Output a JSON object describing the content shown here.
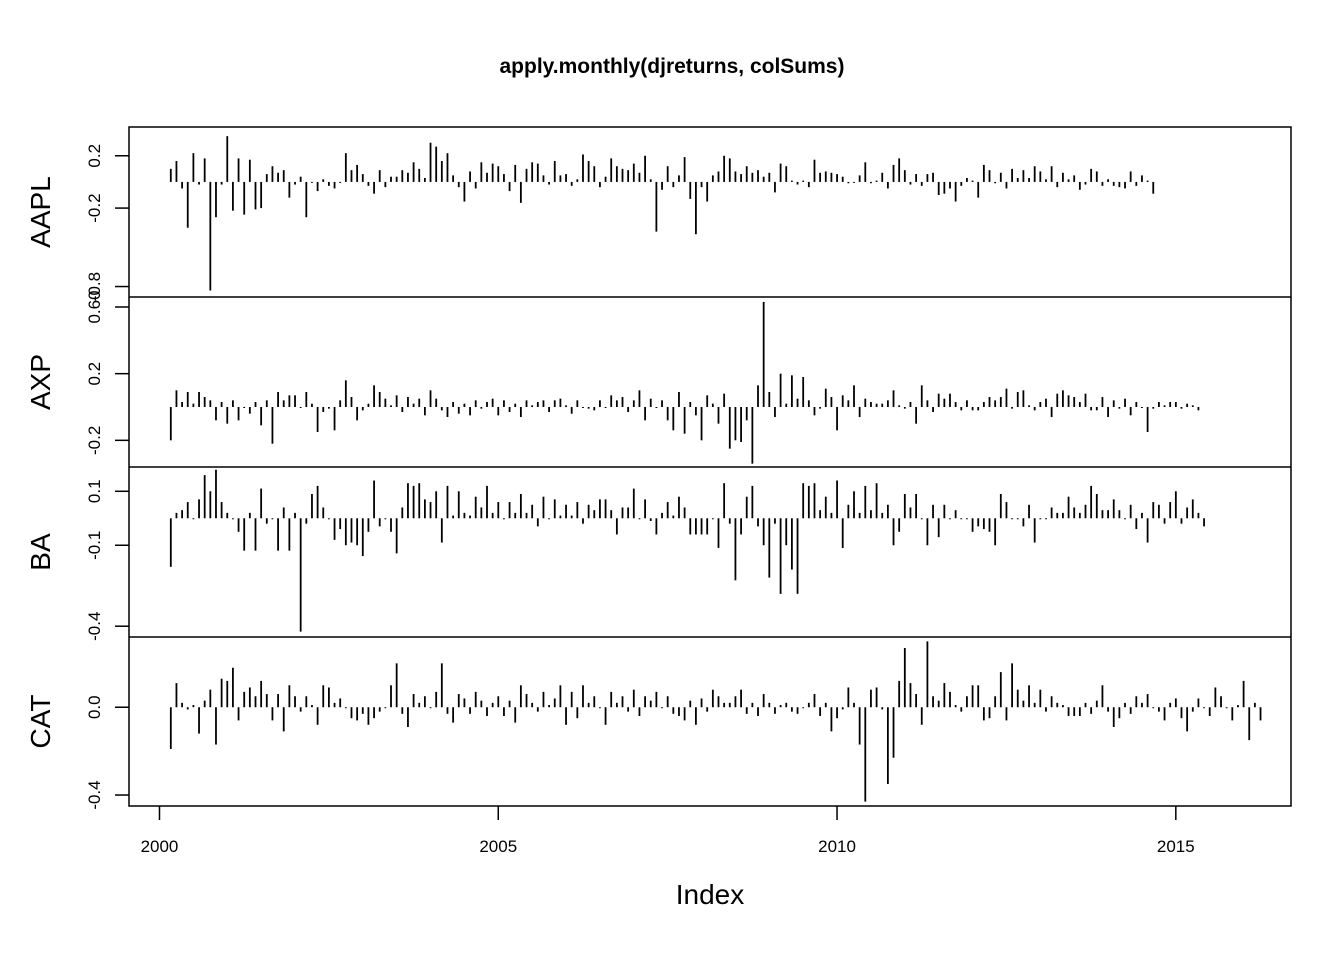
{
  "chart_data": {
    "type": "line",
    "style": "histogram-spikes",
    "title": "apply.monthly(djreturns, colSums)",
    "xlabel": "Index",
    "x_start": 2000.167,
    "x_step_months": 1,
    "xlim": [
      1999.55,
      2016.7
    ],
    "x_ticks": [
      2000,
      2005,
      2010,
      2015
    ],
    "x_tick_labels": [
      "2000",
      "2005",
      "2010",
      "2015"
    ],
    "series": [
      {
        "name": "AAPL",
        "ylim": [
          -0.88,
          0.42
        ],
        "y_ticks": [
          0.2,
          -0.2,
          -0.8
        ],
        "y_tick_labels": [
          "0.2",
          "-0.2",
          "-0.8"
        ],
        "values": [
          0.1,
          0.16,
          -0.05,
          -0.35,
          0.22,
          -0.02,
          0.18,
          -0.83,
          -0.27,
          -0.02,
          0.35,
          -0.22,
          0.18,
          -0.25,
          0.17,
          -0.21,
          -0.2,
          0.06,
          0.12,
          0.07,
          0.09,
          -0.12,
          -0.02,
          0.04,
          -0.27,
          0.0,
          -0.07,
          0.02,
          -0.03,
          -0.05,
          0.0,
          0.22,
          0.09,
          0.13,
          0.06,
          -0.03,
          -0.09,
          0.09,
          -0.04,
          0.04,
          0.04,
          0.09,
          0.07,
          0.15,
          0.1,
          0.03,
          0.3,
          0.27,
          0.16,
          0.22,
          0.05,
          -0.04,
          -0.15,
          0.08,
          -0.05,
          0.15,
          0.07,
          0.14,
          0.12,
          0.06,
          -0.07,
          0.13,
          -0.16,
          0.1,
          0.15,
          0.14,
          0.05,
          -0.02,
          0.16,
          0.05,
          0.06,
          -0.03,
          0.02,
          0.21,
          0.16,
          0.12,
          -0.04,
          0.04,
          0.18,
          0.12,
          0.1,
          0.09,
          0.14,
          0.07,
          0.2,
          0.02,
          -0.38,
          -0.06,
          0.12,
          -0.04,
          0.05,
          0.19,
          -0.13,
          -0.4,
          -0.04,
          -0.15,
          0.05,
          0.08,
          0.2,
          0.18,
          0.08,
          0.06,
          0.12,
          0.07,
          0.09,
          0.04,
          0.07,
          -0.08,
          0.14,
          0.12,
          0.01,
          -0.02,
          0.01,
          -0.04,
          0.17,
          0.07,
          0.08,
          0.07,
          0.06,
          0.04,
          -0.01,
          0.0,
          0.05,
          0.15,
          -0.01,
          0.01,
          0.07,
          -0.05,
          0.13,
          0.18,
          0.09,
          -0.02,
          0.06,
          -0.03,
          0.06,
          0.07,
          -0.1,
          -0.09,
          -0.05,
          -0.15,
          -0.03,
          0.03,
          0.01,
          -0.12,
          0.13,
          0.09,
          -0.01,
          0.07,
          -0.05,
          0.1,
          0.03,
          0.09,
          0.03,
          0.12,
          0.08,
          0.02,
          0.12,
          -0.04,
          0.07,
          0.02,
          0.05,
          -0.06,
          -0.02,
          0.1,
          0.08,
          -0.03,
          0.02,
          -0.03,
          -0.04,
          -0.05,
          0.08,
          -0.03,
          0.05,
          0.01,
          -0.09
        ]
      },
      {
        "name": "AXP",
        "ylim": [
          -0.36,
          0.66
        ],
        "y_ticks": [
          0.6,
          0.2,
          -0.2
        ],
        "y_tick_labels": [
          "0.60",
          "0.2",
          "-0.2"
        ],
        "values": [
          -0.2,
          0.1,
          0.03,
          0.09,
          0.02,
          0.09,
          0.06,
          0.04,
          -0.08,
          0.03,
          -0.1,
          0.04,
          -0.08,
          0.0,
          -0.04,
          0.03,
          -0.11,
          0.04,
          -0.22,
          0.09,
          0.04,
          0.07,
          0.07,
          0.0,
          0.09,
          0.02,
          -0.15,
          -0.03,
          -0.01,
          -0.14,
          0.04,
          0.16,
          0.06,
          -0.08,
          -0.02,
          0.02,
          0.13,
          0.09,
          0.05,
          0.01,
          0.07,
          -0.03,
          0.06,
          0.02,
          0.05,
          -0.05,
          0.1,
          0.05,
          -0.02,
          -0.06,
          0.03,
          -0.04,
          0.02,
          -0.05,
          0.04,
          -0.01,
          0.03,
          0.05,
          -0.05,
          0.04,
          -0.03,
          0.02,
          -0.06,
          0.04,
          0.01,
          0.03,
          0.04,
          -0.03,
          0.04,
          0.05,
          0.01,
          -0.04,
          0.04,
          0.0,
          -0.01,
          -0.02,
          0.04,
          0.0,
          0.07,
          0.04,
          0.06,
          -0.03,
          0.04,
          0.1,
          -0.08,
          0.05,
          0.0,
          0.04,
          -0.08,
          -0.14,
          0.09,
          -0.16,
          0.03,
          -0.05,
          -0.2,
          0.07,
          0.02,
          -0.1,
          0.08,
          -0.25,
          -0.2,
          -0.21,
          -0.08,
          -0.34,
          0.13,
          0.63,
          0.09,
          -0.06,
          0.2,
          0.02,
          0.19,
          0.05,
          0.18,
          0.04,
          -0.05,
          -0.01,
          0.11,
          0.06,
          -0.14,
          0.07,
          0.04,
          0.13,
          -0.06,
          0.05,
          0.03,
          0.02,
          0.02,
          0.04,
          0.1,
          0.01,
          -0.01,
          0.03,
          -0.1,
          0.13,
          0.04,
          -0.03,
          0.08,
          0.05,
          0.08,
          0.03,
          -0.02,
          0.04,
          -0.02,
          -0.02,
          0.03,
          0.06,
          0.04,
          0.06,
          0.11,
          -0.01,
          0.09,
          0.1,
          0.01,
          -0.02,
          0.03,
          0.05,
          -0.06,
          0.08,
          0.1,
          0.07,
          0.06,
          0.03,
          0.08,
          -0.02,
          -0.02,
          0.06,
          -0.06,
          0.04,
          -0.01,
          0.05,
          -0.05,
          0.03,
          0.0,
          -0.15,
          -0.01,
          0.03,
          0.01,
          0.03,
          0.03,
          -0.01,
          0.02,
          0.01,
          -0.02
        ]
      },
      {
        "name": "BA",
        "ylim": [
          -0.44,
          0.19
        ],
        "y_ticks": [
          0.1,
          -0.1,
          -0.4
        ],
        "y_tick_labels": [
          "0.1",
          "-0.1",
          "-0.4"
        ],
        "values": [
          -0.18,
          0.02,
          0.03,
          0.06,
          0.0,
          0.07,
          0.16,
          0.1,
          0.18,
          0.06,
          0.02,
          0.0,
          -0.05,
          -0.12,
          0.02,
          -0.12,
          0.11,
          -0.02,
          0.0,
          -0.12,
          0.04,
          -0.12,
          0.02,
          -0.42,
          -0.02,
          0.09,
          0.12,
          0.04,
          0.0,
          -0.08,
          -0.04,
          -0.1,
          -0.09,
          -0.1,
          -0.14,
          -0.05,
          0.14,
          -0.03,
          0.0,
          -0.05,
          -0.13,
          0.04,
          0.13,
          0.12,
          0.13,
          0.07,
          0.06,
          0.1,
          -0.09,
          0.12,
          0.01,
          0.1,
          0.02,
          0.01,
          0.08,
          0.04,
          0.12,
          0.02,
          0.06,
          0.0,
          0.06,
          0.02,
          0.09,
          0.02,
          0.05,
          -0.03,
          0.08,
          0.0,
          0.07,
          0.01,
          0.05,
          0.01,
          0.06,
          -0.02,
          0.05,
          0.03,
          0.07,
          0.07,
          0.03,
          -0.06,
          0.04,
          0.04,
          0.11,
          0.0,
          0.07,
          -0.01,
          -0.06,
          0.02,
          0.06,
          0.01,
          0.08,
          0.04,
          -0.06,
          -0.06,
          -0.06,
          -0.06,
          0.0,
          -0.11,
          0.13,
          -0.02,
          -0.23,
          -0.06,
          0.08,
          0.12,
          -0.03,
          -0.1,
          -0.22,
          -0.02,
          -0.28,
          -0.1,
          -0.19,
          -0.28,
          0.13,
          0.12,
          0.13,
          0.03,
          0.08,
          0.02,
          0.14,
          -0.11,
          0.05,
          0.1,
          0.02,
          0.12,
          0.03,
          0.13,
          0.02,
          0.05,
          -0.1,
          -0.05,
          0.09,
          0.04,
          0.09,
          0.0,
          -0.1,
          0.05,
          -0.07,
          0.05,
          0.0,
          0.03,
          0.0,
          0.0,
          -0.05,
          -0.03,
          -0.04,
          -0.05,
          -0.1,
          0.09,
          0.06,
          0.0,
          0.0,
          -0.03,
          0.05,
          -0.09,
          0.0,
          0.0,
          0.04,
          0.02,
          0.02,
          0.08,
          0.04,
          0.02,
          0.05,
          0.12,
          0.09,
          0.03,
          0.03,
          0.07,
          0.03,
          0.0,
          0.05,
          -0.04,
          0.02,
          -0.09,
          0.06,
          0.05,
          -0.02,
          0.06,
          0.1,
          -0.02,
          0.04,
          0.07,
          0.02,
          -0.03
        ]
      },
      {
        "name": "CAT",
        "ylim": [
          -0.45,
          0.32
        ],
        "y_ticks": [
          0.0,
          -0.4
        ],
        "y_tick_labels": [
          "0.0",
          "-0.4"
        ],
        "values": [
          -0.19,
          0.11,
          0.02,
          -0.01,
          0.01,
          -0.12,
          0.03,
          0.08,
          -0.17,
          0.13,
          0.12,
          0.18,
          -0.06,
          0.07,
          0.09,
          0.05,
          0.12,
          0.06,
          -0.06,
          0.06,
          -0.11,
          0.1,
          0.05,
          -0.02,
          0.05,
          0.01,
          -0.08,
          0.1,
          0.09,
          0.02,
          0.04,
          0.0,
          -0.05,
          -0.06,
          -0.03,
          -0.08,
          -0.05,
          -0.02,
          0.0,
          0.1,
          0.2,
          -0.03,
          -0.09,
          0.06,
          0.02,
          0.05,
          0.0,
          0.07,
          0.2,
          -0.03,
          -0.07,
          0.06,
          0.04,
          -0.03,
          0.07,
          0.03,
          -0.04,
          0.02,
          0.05,
          -0.04,
          0.03,
          -0.07,
          0.1,
          0.06,
          0.02,
          -0.02,
          0.07,
          0.01,
          0.04,
          0.1,
          -0.08,
          0.07,
          -0.05,
          0.1,
          0.02,
          0.05,
          0.0,
          -0.08,
          0.07,
          0.02,
          0.05,
          -0.02,
          0.08,
          -0.04,
          0.05,
          0.03,
          0.07,
          0.0,
          0.05,
          -0.03,
          -0.04,
          -0.06,
          0.03,
          -0.08,
          0.04,
          -0.02,
          0.08,
          0.05,
          0.02,
          0.02,
          0.05,
          0.08,
          -0.03,
          0.02,
          -0.04,
          0.06,
          0.02,
          -0.03,
          0.01,
          0.02,
          -0.02,
          -0.03,
          0.0,
          0.02,
          0.06,
          -0.04,
          0.02,
          -0.11,
          -0.05,
          -0.01,
          0.09,
          0.02,
          -0.17,
          -0.43,
          0.08,
          0.09,
          -0.01,
          -0.35,
          -0.23,
          0.12,
          0.27,
          0.11,
          0.06,
          -0.08,
          0.3,
          0.05,
          0.03,
          0.11,
          0.07,
          0.01,
          -0.02,
          0.05,
          0.1,
          0.1,
          -0.06,
          -0.05,
          0.05,
          0.16,
          -0.06,
          0.2,
          0.08,
          0.03,
          0.1,
          0.02,
          0.08,
          -0.02,
          0.05,
          0.02,
          0.01,
          -0.04,
          -0.04,
          -0.04,
          0.02,
          -0.03,
          0.03,
          0.1,
          -0.02,
          -0.09,
          -0.05,
          0.02,
          -0.03,
          0.05,
          0.02,
          0.06,
          0.0,
          -0.02,
          -0.06,
          0.02,
          0.04,
          -0.05,
          -0.11,
          -0.02,
          0.04,
          0.0,
          -0.04,
          0.09,
          0.05,
          0.0,
          -0.06,
          0.01,
          0.12,
          -0.15,
          0.02,
          -0.06
        ]
      }
    ]
  }
}
